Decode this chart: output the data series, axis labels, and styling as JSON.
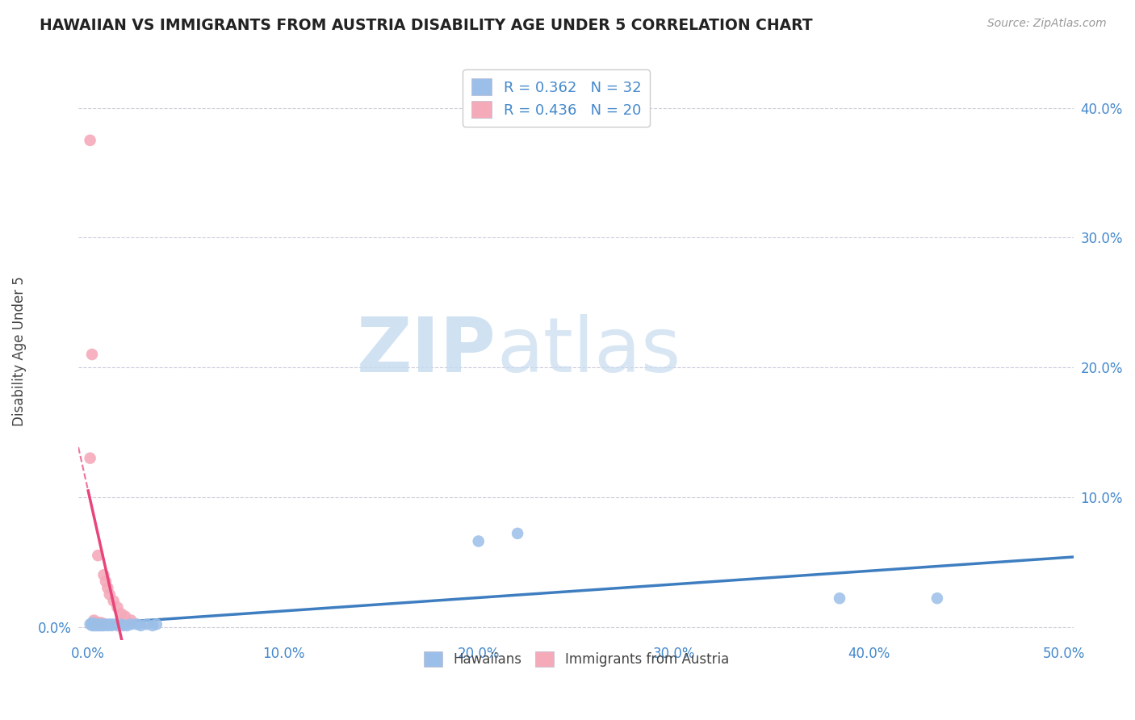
{
  "title": "HAWAIIAN VS IMMIGRANTS FROM AUSTRIA DISABILITY AGE UNDER 5 CORRELATION CHART",
  "source": "Source: ZipAtlas.com",
  "ylabel": "Disability Age Under 5",
  "xlim": [
    -0.005,
    0.505
  ],
  "ylim": [
    -0.01,
    0.435
  ],
  "xticks": [
    0.0,
    0.1,
    0.2,
    0.3,
    0.4,
    0.5
  ],
  "yticks": [
    0.0,
    0.1,
    0.2,
    0.3,
    0.4
  ],
  "ytick_labels_left": [
    "0.0%",
    "",
    "",
    "",
    ""
  ],
  "ytick_labels_right": [
    "",
    "10.0%",
    "20.0%",
    "30.0%",
    "40.0%"
  ],
  "xtick_labels": [
    "0.0%",
    "10.0%",
    "20.0%",
    "30.0%",
    "40.0%",
    "50.0%"
  ],
  "legend_label1": "Hawaiians",
  "legend_label2": "Immigrants from Austria",
  "R1": 0.362,
  "N1": 32,
  "R2": 0.436,
  "N2": 20,
  "color_hawaiian": "#9BBFE8",
  "color_austria": "#F5AABA",
  "color_hawaii_line": "#3E7EC0",
  "color_austria_line": "#E8457A",
  "hawaiian_x": [
    0.001,
    0.002,
    0.002,
    0.003,
    0.003,
    0.004,
    0.004,
    0.005,
    0.005,
    0.006,
    0.007,
    0.007,
    0.008,
    0.009,
    0.01,
    0.011,
    0.012,
    0.013,
    0.015,
    0.017,
    0.018,
    0.02,
    0.022,
    0.025,
    0.027,
    0.03,
    0.033,
    0.035,
    0.2,
    0.22,
    0.385,
    0.435
  ],
  "hawaiian_y": [
    0.002,
    0.001,
    0.003,
    0.001,
    0.002,
    0.001,
    0.002,
    0.001,
    0.002,
    0.001,
    0.001,
    0.002,
    0.001,
    0.002,
    0.001,
    0.002,
    0.001,
    0.002,
    0.001,
    0.002,
    0.001,
    0.001,
    0.002,
    0.002,
    0.001,
    0.002,
    0.001,
    0.002,
    0.066,
    0.072,
    0.022,
    0.022
  ],
  "austria_x": [
    0.001,
    0.001,
    0.002,
    0.003,
    0.003,
    0.004,
    0.005,
    0.005,
    0.006,
    0.006,
    0.007,
    0.008,
    0.009,
    0.01,
    0.011,
    0.013,
    0.015,
    0.017,
    0.019,
    0.022
  ],
  "austria_y": [
    0.375,
    0.13,
    0.21,
    0.005,
    0.003,
    0.003,
    0.055,
    0.003,
    0.003,
    0.003,
    0.003,
    0.04,
    0.035,
    0.03,
    0.025,
    0.02,
    0.015,
    0.01,
    0.008,
    0.005
  ],
  "background_color": "#FFFFFF",
  "grid_color": "#CCCCDD",
  "title_color": "#222222",
  "axis_label_color": "#444444",
  "tick_color": "#4488CC"
}
